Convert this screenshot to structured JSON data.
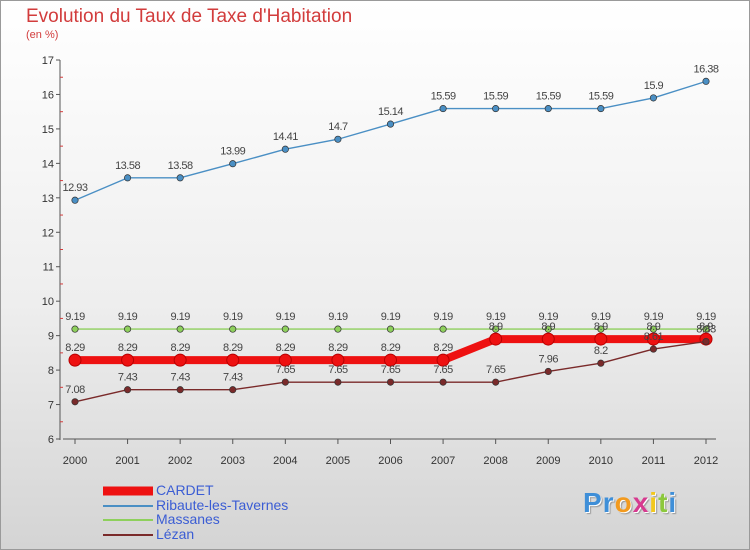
{
  "chart_data": {
    "type": "line",
    "title": "Evolution du Taux de Taxe d'Habitation",
    "subtitle": "(en %)",
    "x": [
      "2000",
      "2001",
      "2002",
      "2003",
      "2004",
      "2005",
      "2006",
      "2007",
      "2008",
      "2009",
      "2010",
      "2011",
      "2012"
    ],
    "ylim": [
      6,
      17
    ],
    "yticks": [
      "6",
      "7",
      "8",
      "9",
      "10",
      "11",
      "12",
      "13",
      "14",
      "15",
      "16",
      "17"
    ],
    "grid": false,
    "legend_position": "bottom-left",
    "series": [
      {
        "name": "Ribaute-les-Tavernes",
        "color": "#4a8fc4",
        "values": [
          12.93,
          13.58,
          13.58,
          13.99,
          14.41,
          14.7,
          15.14,
          15.59,
          15.59,
          15.59,
          15.59,
          15.9,
          16.38
        ],
        "labels": [
          "12.93",
          "13.58",
          "13.58",
          "13.99",
          "14.41",
          "14.7",
          "15.14",
          "15.59",
          "15.59",
          "15.59",
          "15.59",
          "15.9",
          "16.38"
        ]
      },
      {
        "name": "Massanes",
        "color": "#8ed05c",
        "values": [
          9.19,
          9.19,
          9.19,
          9.19,
          9.19,
          9.19,
          9.19,
          9.19,
          9.19,
          9.19,
          9.19,
          9.19,
          9.19
        ],
        "labels": [
          "9.19",
          "9.19",
          "9.19",
          "9.19",
          "9.19",
          "9.19",
          "9.19",
          "9.19",
          "9.19",
          "9.19",
          "9.19",
          "9.19",
          "9.19"
        ]
      },
      {
        "name": "CARDET",
        "color": "#ee1111",
        "values": [
          8.29,
          8.29,
          8.29,
          8.29,
          8.29,
          8.29,
          8.29,
          8.29,
          8.9,
          8.9,
          8.9,
          8.9,
          8.9
        ],
        "labels": [
          "8.29",
          "8.29",
          "8.29",
          "8.29",
          "8.29",
          "8.29",
          "8.29",
          "8.29",
          "8.9",
          "8.9",
          "8.9",
          "8.9",
          "8.9"
        ]
      },
      {
        "name": "Lézan",
        "color": "#7a2a2a",
        "values": [
          7.08,
          7.43,
          7.43,
          7.43,
          7.65,
          7.65,
          7.65,
          7.65,
          7.65,
          7.96,
          8.2,
          8.61,
          8.83
        ],
        "labels": [
          "7.08",
          "7.43",
          "7.43",
          "7.43",
          "7.65",
          "7.65",
          "7.65",
          "7.65",
          "7.65",
          "7.96",
          "8.2",
          "8.61",
          "8.83"
        ]
      }
    ]
  },
  "legend": [
    {
      "label": "CARDET",
      "color": "#ee1111",
      "thick": true
    },
    {
      "label": "Ribaute-les-Tavernes",
      "color": "#4a8fc4",
      "thick": false
    },
    {
      "label": "Massanes",
      "color": "#8ed05c",
      "thick": false
    },
    {
      "label": "Lézan",
      "color": "#7a2a2a",
      "thick": false
    }
  ],
  "logo": {
    "letters": [
      "P",
      "r",
      "o",
      "x",
      "i",
      "t",
      "i"
    ],
    "colors": [
      "#3f8fd8",
      "#3f8fd8",
      "#f29a1e",
      "#d63a8f",
      "#f2c81e",
      "#8cc83c",
      "#3f8fd8"
    ]
  }
}
